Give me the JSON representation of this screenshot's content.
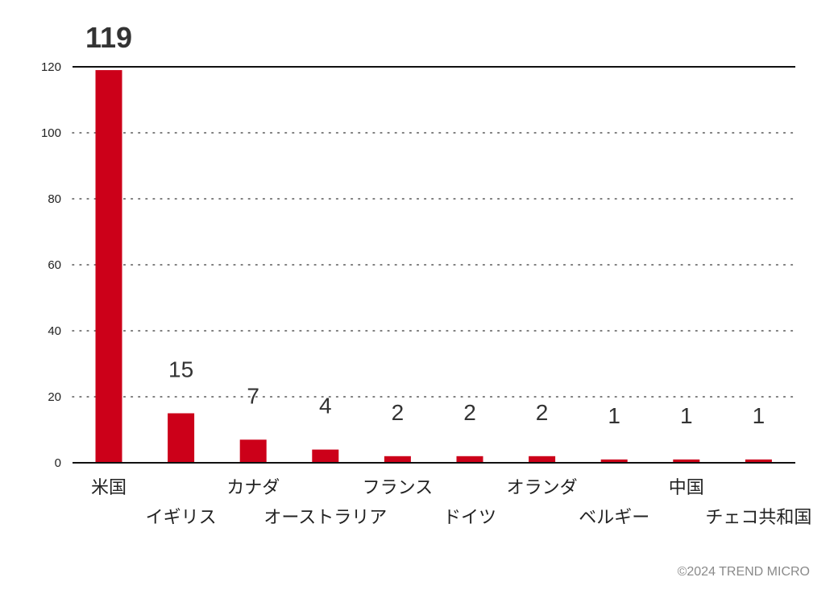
{
  "chart_data": {
    "type": "bar",
    "categories": [
      "米国",
      "イギリス",
      "カナダ",
      "オーストラリア",
      "フランス",
      "ドイツ",
      "オランダ",
      "ベルギー",
      "中国",
      "チェコ共和国"
    ],
    "values": [
      119,
      15,
      7,
      4,
      2,
      2,
      2,
      1,
      1,
      1
    ],
    "data_labels": [
      "119",
      "15",
      "7",
      "4",
      "2",
      "2",
      "2",
      "1",
      "1",
      "1"
    ],
    "yticks": [
      "0",
      "20",
      "40",
      "60",
      "80",
      "100",
      "120"
    ],
    "ylim": [
      0,
      120
    ],
    "grid": "dotted horizontal",
    "bar_color": "#cc0019",
    "highlight_label_color": "#cc0019"
  },
  "footer": {
    "copyright": "©2024 TREND MICRO"
  }
}
